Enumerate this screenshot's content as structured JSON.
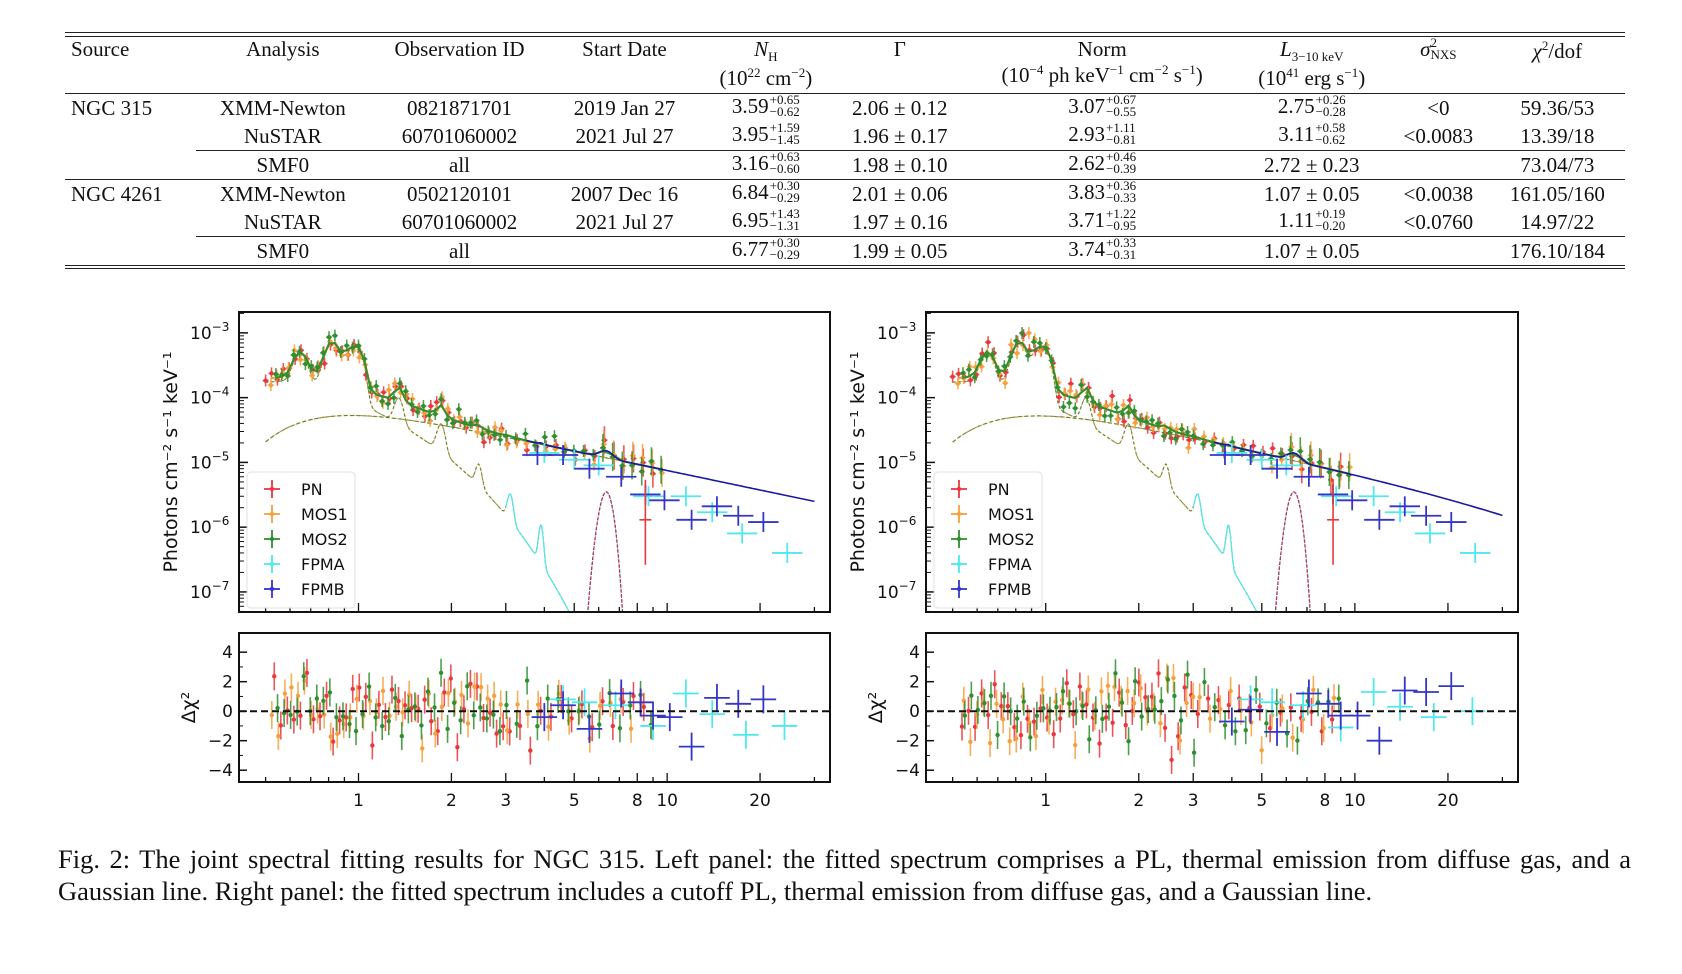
{
  "table": {
    "headers": {
      "source": "Source",
      "analysis": "Analysis",
      "obs_id": "Observation ID",
      "start_date": "Start Date",
      "nh_symbol": "N",
      "nh_sub": "H",
      "nh_unit_pre": "(10",
      "nh_unit_exp": "22",
      "nh_unit_mid": " cm",
      "nh_unit_exp2": "−2",
      "nh_unit_post": ")",
      "gamma": "Γ",
      "norm": "Norm",
      "norm_unit_pre": "(10",
      "norm_unit_exp": "−4",
      "norm_unit_mid1": " ph keV",
      "norm_unit_exp2": "−1",
      "norm_unit_mid2": " cm",
      "norm_unit_exp3": "−2",
      "norm_unit_mid3": " s",
      "norm_unit_exp4": "−1",
      "norm_unit_post": ")",
      "lum_symbol": "L",
      "lum_sub": "3−10 keV",
      "lum_unit_pre": "(10",
      "lum_unit_exp": "41",
      "lum_unit_mid": " erg s",
      "lum_unit_exp2": "−1",
      "lum_unit_post": ")",
      "sigma_symbol": "σ",
      "sigma_sup": "2",
      "sigma_sub": "NXS",
      "chi_symbol": "χ",
      "chi_sup": "2",
      "chi_post": "/dof"
    },
    "rows": [
      {
        "source": "NGC 315",
        "analysis": "XMM-Newton",
        "obs_id": "0821871701",
        "start_date": "2019 Jan 27",
        "nh": {
          "v": "3.59",
          "up": "+0.65",
          "lo": "−0.62"
        },
        "gamma": "2.06 ± 0.12",
        "norm": {
          "v": "3.07",
          "up": "+0.67",
          "lo": "−0.55"
        },
        "lum": {
          "v": "2.75",
          "up": "+0.26",
          "lo": "−0.28"
        },
        "sigma": "<0",
        "chi": "59.36/53"
      },
      {
        "source": "",
        "analysis": "NuSTAR",
        "obs_id": "60701060002",
        "start_date": "2021 Jul 27",
        "nh": {
          "v": "3.95",
          "up": "+1.59",
          "lo": "−1.45"
        },
        "gamma": "1.96 ± 0.17",
        "norm": {
          "v": "2.93",
          "up": "+1.11",
          "lo": "−0.81"
        },
        "lum": {
          "v": "3.11",
          "up": "+0.58",
          "lo": "−0.62"
        },
        "sigma": "<0.0083",
        "chi": "13.39/18"
      },
      {
        "source": "",
        "analysis": "SMF0",
        "obs_id": "all",
        "start_date": "",
        "nh": {
          "v": "3.16",
          "up": "+0.63",
          "lo": "−0.60"
        },
        "gamma": "1.98 ± 0.10",
        "norm": {
          "v": "2.62",
          "up": "+0.46",
          "lo": "−0.39"
        },
        "lum": {
          "v": "2.72 ± 0.23",
          "up": "",
          "lo": ""
        },
        "sigma": "",
        "chi": "73.04/73"
      },
      {
        "source": "NGC 4261",
        "analysis": "XMM-Newton",
        "obs_id": "0502120101",
        "start_date": "2007 Dec 16",
        "nh": {
          "v": "6.84",
          "up": "+0.30",
          "lo": "−0.29"
        },
        "gamma": "2.01 ± 0.06",
        "norm": {
          "v": "3.83",
          "up": "+0.36",
          "lo": "−0.33"
        },
        "lum": {
          "v": "1.07 ± 0.05",
          "up": "",
          "lo": ""
        },
        "sigma": "<0.0038",
        "chi": "161.05/160"
      },
      {
        "source": "",
        "analysis": "NuSTAR",
        "obs_id": "60701060002",
        "start_date": "2021 Jul 27",
        "nh": {
          "v": "6.95",
          "up": "+1.43",
          "lo": "−1.31"
        },
        "gamma": "1.97 ± 0.16",
        "norm": {
          "v": "3.71",
          "up": "+1.22",
          "lo": "−0.95"
        },
        "lum": {
          "v": "1.11",
          "up": "+0.19",
          "lo": "−0.20"
        },
        "sigma": "<0.0760",
        "chi": "14.97/22"
      },
      {
        "source": "",
        "analysis": "SMF0",
        "obs_id": "all",
        "start_date": "",
        "nh": {
          "v": "6.77",
          "up": "+0.30",
          "lo": "−0.29"
        },
        "gamma": "1.99 ± 0.05",
        "norm": {
          "v": "3.74",
          "up": "+0.33",
          "lo": "−0.31"
        },
        "lum": {
          "v": "1.07 ± 0.05",
          "up": "",
          "lo": ""
        },
        "sigma": "",
        "chi": "176.10/184"
      }
    ]
  },
  "caption": "Fig. 2: The joint spectral fitting results for NGC 315. Left panel: the fitted spectrum comprises a PL, thermal emission from diffuse gas, and a Gaussian line. Right panel: the fitted spectrum includes a cutoff PL, thermal emission from diffuse gas, and a Gaussian line.",
  "chart_data": [
    {
      "type": "scatter",
      "panel": "left",
      "title": "",
      "model": "PL + thermal + Gaussian",
      "xscale": "log",
      "yscale": "log",
      "xlim": [
        0.41,
        33.7
      ],
      "ylim": [
        4.9e-08,
        0.0021
      ],
      "ylabel": "Photons cm⁻² s⁻¹ keV⁻¹",
      "y_ticks": [
        {
          "v": 0.001,
          "label": "10−3"
        },
        {
          "v": 0.0001,
          "label": "10−4"
        },
        {
          "v": 1e-05,
          "label": "10−5"
        },
        {
          "v": 1e-06,
          "label": "10−6"
        },
        {
          "v": 1e-07,
          "label": "10−7"
        }
      ],
      "x_ticks": [
        {
          "v": 1,
          "label": "1"
        },
        {
          "v": 2,
          "label": "2"
        },
        {
          "v": 3,
          "label": "3"
        },
        {
          "v": 5,
          "label": "5"
        },
        {
          "v": 8,
          "label": "8"
        },
        {
          "v": 10,
          "label": "10"
        },
        {
          "v": 20,
          "label": "20"
        }
      ],
      "residual": {
        "ylabel": "Δχ²",
        "ylim": [
          -4.8,
          5.3
        ],
        "y_ticks": [
          4,
          2,
          0,
          -2,
          -4
        ],
        "zero_line": true
      },
      "legend": {
        "placement": "lower-left",
        "entries": [
          "PN",
          "MOS1",
          "MOS2",
          "FPMA",
          "FPMB"
        ]
      },
      "series": [
        {
          "name": "PN",
          "color": "#e8383d"
        },
        {
          "name": "MOS1",
          "color": "#f5a03c"
        },
        {
          "name": "MOS2",
          "color": "#2f8f2f"
        },
        {
          "name": "FPMA",
          "color": "#4fe8ef"
        },
        {
          "name": "FPMB",
          "color": "#3535c8"
        }
      ],
      "nustar_points": {
        "FPMA": [
          [
            4.0,
            1.4e-05
          ],
          [
            5.0,
            1.1e-05
          ],
          [
            6.0,
            9e-06
          ],
          [
            8.7,
            3e-06
          ],
          [
            11.5,
            3e-06
          ],
          [
            14,
            1.7e-06
          ],
          [
            17.5,
            8e-07
          ],
          [
            24.5,
            4e-07
          ]
        ],
        "FPMB": [
          [
            3.8,
            1.3e-05
          ],
          [
            4.6,
            1.3e-05
          ],
          [
            5.6,
            8e-06
          ],
          [
            7.1,
            6e-06
          ],
          [
            8.5,
            3.2e-06
          ],
          [
            9.8,
            2.6e-06
          ],
          [
            12,
            1.3e-06
          ],
          [
            14.5,
            2.1e-06
          ],
          [
            17,
            1.5e-06
          ],
          [
            20.5,
            1.2e-06
          ]
        ]
      },
      "residuals_nustar": {
        "FPMA": [
          [
            4.6,
            0.8
          ],
          [
            5.4,
            0.6
          ],
          [
            6.8,
            0.4
          ],
          [
            9,
            -1.0
          ],
          [
            11.5,
            1.2
          ],
          [
            14,
            -0.2
          ],
          [
            18,
            -1.6
          ],
          [
            24,
            -1.0
          ]
        ],
        "FPMB": [
          [
            4.0,
            -0.4
          ],
          [
            4.6,
            0.4
          ],
          [
            5.6,
            -1.2
          ],
          [
            7.1,
            1.2
          ],
          [
            8.2,
            0.6
          ],
          [
            9.0,
            -0.3
          ],
          [
            10.2,
            -0.4
          ],
          [
            12,
            -2.4
          ],
          [
            14.5,
            0.9
          ],
          [
            17,
            0.5
          ],
          [
            20.5,
            0.8
          ]
        ]
      }
    },
    {
      "type": "scatter",
      "panel": "right",
      "title": "",
      "model": "cutoff PL + thermal + Gaussian",
      "xscale": "log",
      "yscale": "log",
      "xlim": [
        0.41,
        33.7
      ],
      "ylim": [
        4.9e-08,
        0.0021
      ],
      "ylabel": "Photons cm⁻² s⁻¹ keV⁻¹",
      "y_ticks": [
        {
          "v": 0.001,
          "label": "10−3"
        },
        {
          "v": 0.0001,
          "label": "10−4"
        },
        {
          "v": 1e-05,
          "label": "10−5"
        },
        {
          "v": 1e-06,
          "label": "10−6"
        },
        {
          "v": 1e-07,
          "label": "10−7"
        }
      ],
      "x_ticks": [
        {
          "v": 1,
          "label": "1"
        },
        {
          "v": 2,
          "label": "2"
        },
        {
          "v": 3,
          "label": "3"
        },
        {
          "v": 5,
          "label": "5"
        },
        {
          "v": 8,
          "label": "8"
        },
        {
          "v": 10,
          "label": "10"
        },
        {
          "v": 20,
          "label": "20"
        }
      ],
      "residual": {
        "ylabel": "Δχ²",
        "ylim": [
          -4.8,
          5.3
        ],
        "y_ticks": [
          4,
          2,
          0,
          -2,
          -4
        ],
        "zero_line": true
      },
      "legend": {
        "placement": "lower-left",
        "entries": [
          "PN",
          "MOS1",
          "MOS2",
          "FPMA",
          "FPMB"
        ]
      },
      "series": [
        {
          "name": "PN",
          "color": "#e8383d"
        },
        {
          "name": "MOS1",
          "color": "#f5a03c"
        },
        {
          "name": "MOS2",
          "color": "#2f8f2f"
        },
        {
          "name": "FPMA",
          "color": "#4fe8ef"
        },
        {
          "name": "FPMB",
          "color": "#3535c8"
        }
      ],
      "nustar_points": {
        "FPMA": [
          [
            4.0,
            1.4e-05
          ],
          [
            5.0,
            1.1e-05
          ],
          [
            6.0,
            9e-06
          ],
          [
            8.7,
            3e-06
          ],
          [
            11.5,
            3e-06
          ],
          [
            14,
            1.7e-06
          ],
          [
            17.5,
            8e-07
          ],
          [
            24.5,
            4e-07
          ]
        ],
        "FPMB": [
          [
            3.8,
            1.3e-05
          ],
          [
            4.6,
            1.3e-05
          ],
          [
            5.6,
            8e-06
          ],
          [
            7.1,
            6e-06
          ],
          [
            8.5,
            3.2e-06
          ],
          [
            9.8,
            2.6e-06
          ],
          [
            12,
            1.3e-06
          ],
          [
            14.5,
            2.1e-06
          ],
          [
            17,
            1.5e-06
          ],
          [
            20.5,
            1.2e-06
          ]
        ]
      },
      "residuals_nustar": {
        "FPMA": [
          [
            4.6,
            0.8
          ],
          [
            5.4,
            0.6
          ],
          [
            6.8,
            0.4
          ],
          [
            9,
            -1.1
          ],
          [
            11.5,
            1.3
          ],
          [
            14,
            0.3
          ],
          [
            18,
            -0.4
          ],
          [
            24,
            0.0
          ]
        ],
        "FPMB": [
          [
            4.0,
            -0.7
          ],
          [
            4.6,
            0.1
          ],
          [
            5.6,
            -1.4
          ],
          [
            7.1,
            1.2
          ],
          [
            8.2,
            0.5
          ],
          [
            9.0,
            -0.3
          ],
          [
            10.2,
            -0.3
          ],
          [
            12,
            -2.0
          ],
          [
            14.5,
            1.4
          ],
          [
            17,
            1.3
          ],
          [
            20.5,
            1.7
          ]
        ]
      }
    }
  ]
}
